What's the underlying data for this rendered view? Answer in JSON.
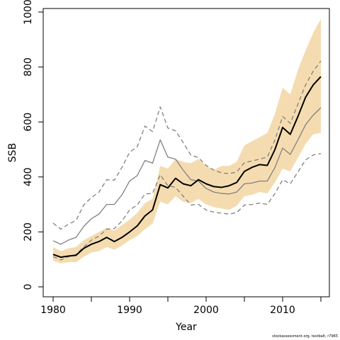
{
  "chart_data": {
    "type": "line",
    "xlabel": "Year",
    "ylabel": "SSB",
    "xlim": [
      1980,
      2015
    ],
    "ylim": [
      0,
      1000
    ],
    "xticks": [
      1980,
      1990,
      2000,
      2010
    ],
    "yticks": [
      0,
      200,
      400,
      600,
      800,
      1000
    ],
    "x": [
      1980,
      1981,
      1982,
      1983,
      1984,
      1985,
      1986,
      1987,
      1988,
      1989,
      1990,
      1991,
      1992,
      1993,
      1994,
      1995,
      1996,
      1997,
      1998,
      1999,
      2000,
      2001,
      2002,
      2003,
      2004,
      2005,
      2006,
      2007,
      2008,
      2009,
      2010,
      2011,
      2012,
      2013,
      2014,
      2015
    ],
    "band": {
      "color": "#f5dcb0",
      "lower": [
        95,
        85,
        90,
        90,
        110,
        125,
        130,
        145,
        135,
        150,
        170,
        185,
        210,
        230,
        310,
        300,
        330,
        310,
        305,
        320,
        300,
        290,
        285,
        280,
        295,
        330,
        335,
        345,
        340,
        380,
        430,
        420,
        470,
        520,
        555,
        560
      ],
      "upper": [
        145,
        130,
        140,
        145,
        170,
        185,
        200,
        215,
        205,
        225,
        245,
        270,
        305,
        320,
        440,
        430,
        465,
        455,
        450,
        465,
        440,
        425,
        440,
        440,
        455,
        515,
        530,
        545,
        560,
        630,
        725,
        700,
        790,
        860,
        925,
        975
      ]
    },
    "series": [
      {
        "color": "#000000",
        "style": "solid",
        "width": 2,
        "values": [
          118,
          108,
          112,
          115,
          140,
          155,
          165,
          180,
          165,
          180,
          200,
          222,
          258,
          280,
          372,
          360,
          395,
          375,
          368,
          390,
          375,
          365,
          362,
          368,
          380,
          420,
          435,
          445,
          442,
          500,
          580,
          555,
          620,
          690,
          735,
          765
        ]
      },
      {
        "color": "#808080",
        "style": "solid",
        "width": 1.3,
        "values": [
          168,
          155,
          170,
          180,
          220,
          248,
          265,
          300,
          300,
          335,
          385,
          405,
          460,
          450,
          535,
          472,
          465,
          425,
          390,
          385,
          358,
          345,
          340,
          338,
          345,
          375,
          378,
          385,
          385,
          435,
          505,
          482,
          535,
          590,
          625,
          652
        ]
      },
      {
        "color": "#808080",
        "style": "dashed",
        "width": 1.3,
        "values": [
          232,
          210,
          228,
          242,
          298,
          325,
          345,
          390,
          388,
          435,
          490,
          510,
          585,
          565,
          655,
          578,
          568,
          525,
          480,
          470,
          442,
          425,
          415,
          412,
          418,
          452,
          458,
          465,
          472,
          535,
          620,
          595,
          665,
          735,
          785,
          822
        ]
      },
      {
        "color": "#808080",
        "style": "dashed",
        "width": 1.3,
        "values": [
          110,
          98,
          110,
          118,
          145,
          170,
          185,
          210,
          212,
          240,
          280,
          298,
          338,
          340,
          408,
          368,
          362,
          330,
          298,
          300,
          280,
          272,
          268,
          265,
          270,
          298,
          300,
          305,
          300,
          340,
          390,
          375,
          418,
          462,
          480,
          485
        ]
      }
    ]
  },
  "footnote": "stockassessment.org, testbalt, r7965"
}
